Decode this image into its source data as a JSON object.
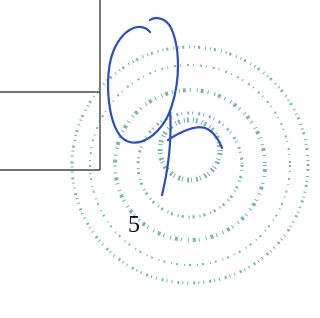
{
  "page_number": "5"
}
